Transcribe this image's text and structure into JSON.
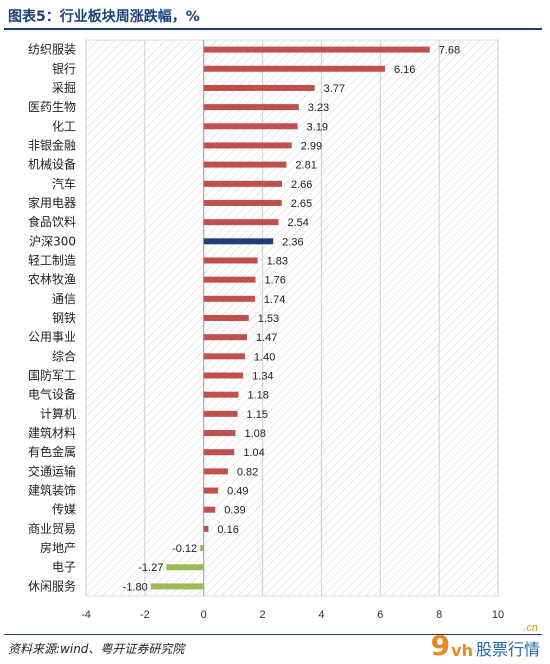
{
  "title": "图表5：行业板块周涨跌幅，%",
  "source": "资料来源:wind、粤开证券研究院",
  "watermark": {
    "logo": "9",
    "logo_small": "vh",
    "text": "股票行情",
    "domain": ".cn"
  },
  "colors": {
    "positive": "#c0504d",
    "negative": "#9bbb59",
    "benchmark": "#1f3f7a",
    "title": "#1f3f7a"
  },
  "chart_data": {
    "type": "bar",
    "orientation": "horizontal",
    "categories": [
      "纺织服装",
      "银行",
      "采掘",
      "医药生物",
      "化工",
      "非银金融",
      "机械设备",
      "汽车",
      "家用电器",
      "食品饮料",
      "沪深300",
      "轻工制造",
      "农林牧渔",
      "通信",
      "钢铁",
      "公用事业",
      "综合",
      "国防军工",
      "电气设备",
      "计算机",
      "建筑材料",
      "有色金属",
      "交通运输",
      "建筑装饰",
      "传媒",
      "商业贸易",
      "房地产",
      "电子",
      "休闲服务"
    ],
    "values": [
      7.68,
      6.16,
      3.77,
      3.23,
      3.19,
      2.99,
      2.81,
      2.66,
      2.65,
      2.54,
      2.36,
      1.83,
      1.76,
      1.74,
      1.53,
      1.47,
      1.4,
      1.34,
      1.18,
      1.15,
      1.08,
      1.04,
      0.82,
      0.49,
      0.39,
      0.16,
      -0.12,
      -1.27,
      -1.8
    ],
    "labels": [
      "7.68",
      "6.16",
      "3.77",
      "3.23",
      "3.19",
      "2.99",
      "2.81",
      "2.66",
      "2.65",
      "2.54",
      "2.36",
      "1.83",
      "1.76",
      "1.74",
      "1.53",
      "1.47",
      "1.40",
      "1.34",
      "1.18",
      "1.15",
      "1.08",
      "1.04",
      "0.82",
      "0.49",
      "0.39",
      "0.16",
      "-0.12",
      "-1.27",
      "-1.80"
    ],
    "highlight": "沪深300",
    "xlim": [
      -4,
      10
    ],
    "xticks": [
      "-4",
      "-2",
      "0",
      "2",
      "4",
      "6",
      "8",
      "10"
    ],
    "grid": true
  }
}
